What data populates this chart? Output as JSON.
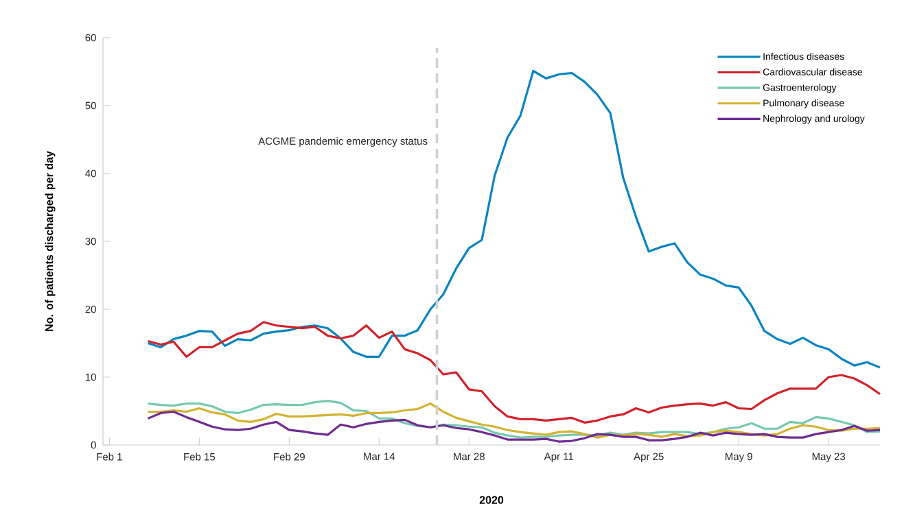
{
  "chart_data": {
    "type": "line",
    "xlabel": "2020",
    "ylabel": "No. of patients discharged per day",
    "x": [
      "2020-02-07",
      "2020-02-09",
      "2020-02-11",
      "2020-02-13",
      "2020-02-15",
      "2020-02-17",
      "2020-02-19",
      "2020-02-21",
      "2020-02-23",
      "2020-02-25",
      "2020-02-27",
      "2020-02-29",
      "2020-03-02",
      "2020-03-04",
      "2020-03-06",
      "2020-03-08",
      "2020-03-10",
      "2020-03-12",
      "2020-03-14",
      "2020-03-16",
      "2020-03-18",
      "2020-03-20",
      "2020-03-22",
      "2020-03-24",
      "2020-03-26",
      "2020-03-28",
      "2020-03-30",
      "2020-04-01",
      "2020-04-03",
      "2020-04-05",
      "2020-04-07",
      "2020-04-09",
      "2020-04-11",
      "2020-04-13",
      "2020-04-15",
      "2020-04-17",
      "2020-04-19",
      "2020-04-21",
      "2020-04-23",
      "2020-04-25",
      "2020-04-27",
      "2020-04-29",
      "2020-05-01",
      "2020-05-03",
      "2020-05-05",
      "2020-05-07",
      "2020-05-09",
      "2020-05-11",
      "2020-05-13",
      "2020-05-15",
      "2020-05-17",
      "2020-05-19",
      "2020-05-21",
      "2020-05-23",
      "2020-05-25",
      "2020-05-27",
      "2020-05-29",
      "2020-05-31"
    ],
    "series": [
      {
        "name": "Infectious diseases",
        "color": "#0a84c1",
        "values": [
          15.0,
          14.4,
          15.6,
          16.1,
          16.8,
          16.7,
          14.6,
          15.6,
          15.4,
          16.4,
          16.7,
          16.9,
          17.4,
          17.6,
          17.2,
          15.7,
          13.7,
          13.0,
          13.0,
          16.1,
          16.1,
          16.9,
          20.0,
          22.2,
          26.0,
          29.0,
          30.2,
          39.7,
          45.3,
          48.5,
          55.1,
          54.0,
          54.6,
          54.8,
          53.5,
          51.6,
          48.9,
          39.4,
          33.6,
          28.5,
          29.2,
          29.7,
          26.9,
          25.1,
          24.5,
          23.5,
          23.2,
          20.5,
          16.8,
          15.6,
          14.9,
          15.8,
          14.7,
          14.1,
          12.7,
          11.7,
          12.2,
          11.4
        ]
      },
      {
        "name": "Cardiovascular disease",
        "color": "#d2232a",
        "values": [
          15.3,
          14.8,
          15.2,
          13.0,
          14.4,
          14.4,
          15.4,
          16.4,
          16.8,
          18.1,
          17.6,
          17.4,
          17.2,
          17.4,
          16.1,
          15.7,
          16.1,
          17.6,
          15.8,
          16.7,
          14.1,
          13.5,
          12.5,
          10.4,
          10.7,
          8.2,
          7.9,
          5.7,
          4.2,
          3.8,
          3.8,
          3.6,
          3.8,
          4.0,
          3.3,
          3.6,
          4.2,
          4.5,
          5.4,
          4.8,
          5.5,
          5.8,
          6.0,
          6.1,
          5.8,
          6.3,
          5.4,
          5.3,
          6.6,
          7.6,
          8.3,
          8.3,
          8.3,
          10.0,
          10.3,
          9.8,
          8.8,
          7.5
        ]
      },
      {
        "name": "Gastroenterology",
        "color": "#76c9af",
        "values": [
          6.1,
          5.9,
          5.8,
          6.1,
          6.1,
          5.7,
          4.9,
          4.7,
          5.2,
          5.9,
          6.0,
          5.9,
          5.9,
          6.3,
          6.5,
          6.2,
          5.1,
          5.0,
          3.9,
          3.9,
          3.2,
          2.8,
          2.6,
          3.0,
          2.9,
          2.7,
          2.6,
          1.8,
          1.4,
          1.1,
          1.2,
          1.2,
          1.4,
          1.5,
          1.5,
          1.4,
          1.8,
          1.5,
          1.8,
          1.7,
          1.9,
          1.9,
          1.9,
          1.6,
          1.9,
          2.4,
          2.6,
          3.2,
          2.4,
          2.4,
          3.4,
          3.2,
          4.1,
          3.9,
          3.4,
          2.9,
          1.9,
          2.0
        ]
      },
      {
        "name": "Pulmonary disease",
        "color": "#d4b232",
        "values": [
          4.9,
          4.9,
          5.1,
          4.9,
          5.4,
          4.8,
          4.5,
          3.6,
          3.4,
          3.8,
          4.6,
          4.2,
          4.2,
          4.3,
          4.4,
          4.5,
          4.3,
          4.7,
          4.7,
          4.8,
          5.1,
          5.3,
          6.1,
          4.9,
          4.0,
          3.5,
          3.0,
          2.7,
          2.2,
          1.9,
          1.7,
          1.5,
          1.9,
          2.0,
          1.6,
          1.1,
          1.5,
          1.4,
          1.6,
          1.5,
          1.2,
          1.6,
          1.3,
          1.4,
          1.9,
          2.1,
          1.9,
          1.6,
          1.4,
          1.6,
          2.4,
          2.9,
          2.7,
          2.2,
          2.1,
          2.4,
          2.4,
          2.5
        ]
      },
      {
        "name": "Nephrology and urology",
        "color": "#6f2c91",
        "values": [
          3.9,
          4.7,
          4.9,
          4.1,
          3.4,
          2.7,
          2.3,
          2.2,
          2.4,
          3.0,
          3.4,
          2.2,
          2.0,
          1.7,
          1.5,
          3.0,
          2.6,
          3.1,
          3.4,
          3.6,
          3.7,
          2.9,
          2.6,
          2.9,
          2.5,
          2.3,
          1.9,
          1.4,
          0.8,
          0.8,
          0.8,
          0.9,
          0.5,
          0.6,
          1.0,
          1.6,
          1.5,
          1.2,
          1.2,
          0.7,
          0.7,
          0.9,
          1.2,
          1.8,
          1.4,
          1.8,
          1.6,
          1.5,
          1.6,
          1.2,
          1.1,
          1.1,
          1.6,
          1.9,
          2.2,
          2.8,
          2.1,
          2.2
        ]
      }
    ],
    "xlim": [
      "2020-01-31",
      "2020-05-31"
    ],
    "xticks": [
      {
        "value": "2020-02-01",
        "label": "Feb 1"
      },
      {
        "value": "2020-02-15",
        "label": "Feb 15"
      },
      {
        "value": "2020-02-29",
        "label": "Feb 29"
      },
      {
        "value": "2020-03-14",
        "label": "Mar 14"
      },
      {
        "value": "2020-03-28",
        "label": "Mar 28"
      },
      {
        "value": "2020-04-11",
        "label": "Apr 11"
      },
      {
        "value": "2020-04-25",
        "label": "Apr 25"
      },
      {
        "value": "2020-05-09",
        "label": "May 9"
      },
      {
        "value": "2020-05-23",
        "label": "May 23"
      }
    ],
    "ylim": [
      0,
      60
    ],
    "yticks": [
      0,
      10,
      20,
      30,
      40,
      50,
      60
    ],
    "ref_lines": [
      {
        "axis": "x",
        "value": "2020-03-23",
        "label": "ACGME pandemic emergency status",
        "color": "#d0d0d0",
        "line_style": "dashed"
      }
    ],
    "legend": "top right",
    "grid": false,
    "marker": "none",
    "line_style": "solid"
  }
}
